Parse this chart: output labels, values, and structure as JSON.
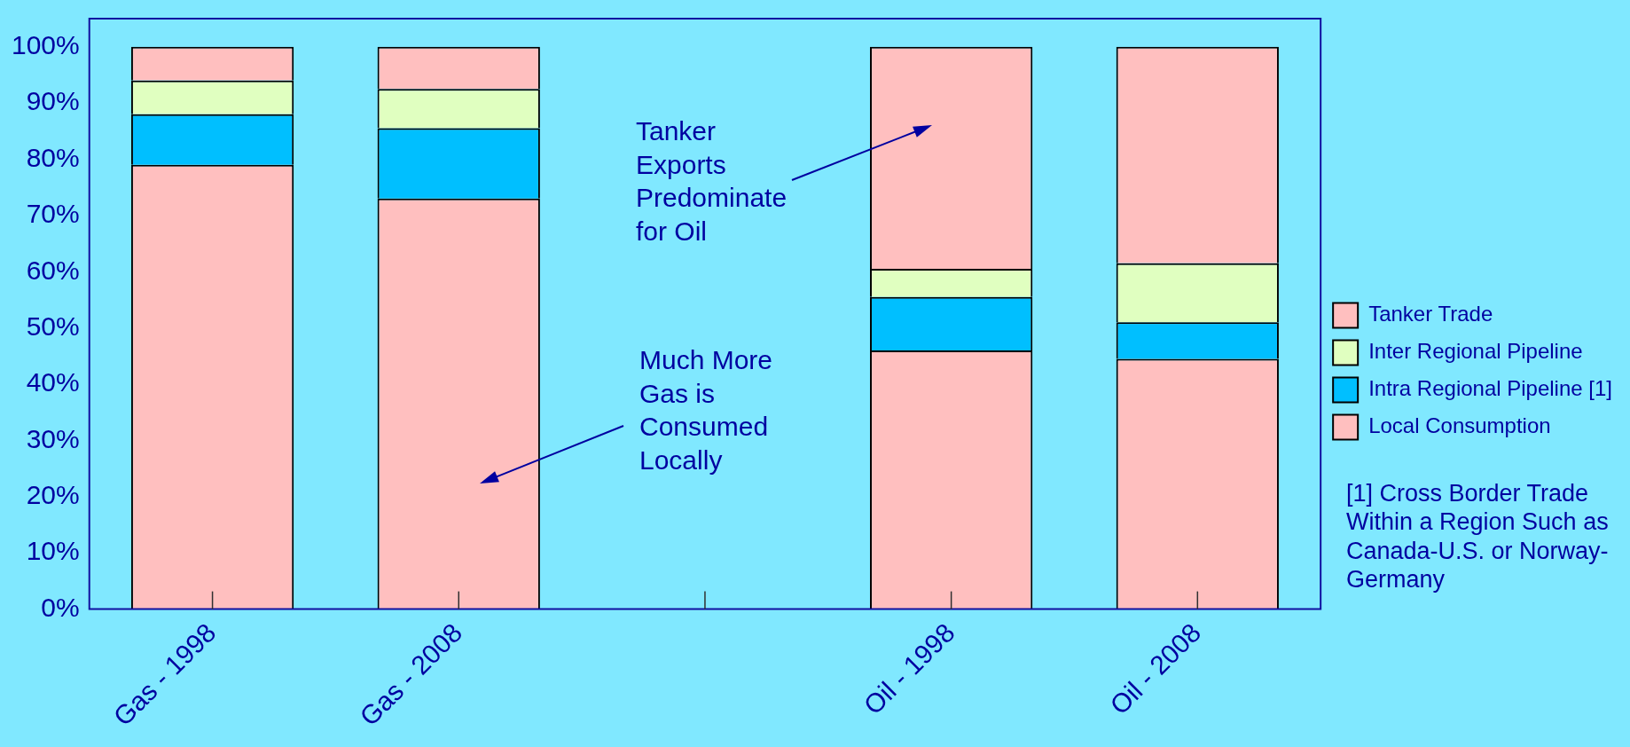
{
  "chart_data": {
    "type": "bar",
    "stacked": true,
    "categories": [
      "Gas - 1998",
      "Gas - 2008",
      null,
      "Oil - 1998",
      "Oil - 2008"
    ],
    "series": [
      {
        "name": "Local Consumption",
        "color": "#ffbfbf",
        "values": [
          79,
          73,
          null,
          46,
          44.5
        ]
      },
      {
        "name": "Intra Regional Pipeline [1]",
        "color": "#00bfff",
        "values": [
          9,
          12.5,
          null,
          9.5,
          6.5
        ]
      },
      {
        "name": "Inter Regional Pipeline",
        "color": "#e0ffc0",
        "values": [
          6,
          7,
          null,
          5,
          10.5
        ]
      },
      {
        "name": "Tanker Trade",
        "color": "#ffbfbf",
        "values": [
          6,
          7.5,
          null,
          39.5,
          38.5
        ]
      }
    ],
    "ylim": [
      0,
      105
    ],
    "yticks": [
      {
        "value": 0,
        "label": "0%"
      },
      {
        "value": 10,
        "label": "10%"
      },
      {
        "value": 20,
        "label": "20%"
      },
      {
        "value": 30,
        "label": "30%"
      },
      {
        "value": 40,
        "label": "40%"
      },
      {
        "value": 50,
        "label": "50%"
      },
      {
        "value": 60,
        "label": "60%"
      },
      {
        "value": 70,
        "label": "70%"
      },
      {
        "value": 80,
        "label": "80%"
      },
      {
        "value": 90,
        "label": "90%"
      },
      {
        "value": 100,
        "label": "100%"
      }
    ],
    "legend": "right",
    "annotations": [
      "Tanker Exports Predominate for Oil",
      "Much More Gas is Consumed Locally",
      "[1] Cross Border Trade Within a Region Such as Canada-U.S. or Norway-Germany"
    ]
  }
}
